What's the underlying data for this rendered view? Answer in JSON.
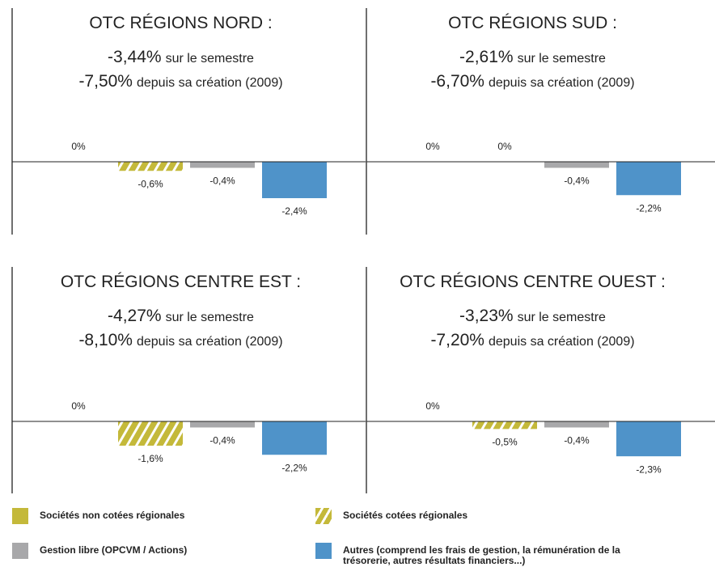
{
  "legend": [
    {
      "name": "Sociétés non cotées régionales",
      "color": "#c4b93a",
      "hatch": false
    },
    {
      "name": "Sociétés cotées régionales",
      "color": "#c4b93a",
      "hatch": true
    },
    {
      "name": "Gestion libre (OPCVM / Actions)",
      "color": "#a8a8aa",
      "hatch": false
    },
    {
      "name": "Autres (comprend les frais de gestion, la rémunération de la trésorerie, autres résultats financiers...)",
      "color": "#4f93c9",
      "hatch": false
    }
  ],
  "chart_data": [
    {
      "type": "bar",
      "title": "OTC RÉGIONS NORD :",
      "stats": [
        {
          "label": "-3,44%",
          "text": "sur le semestre"
        },
        {
          "label": "-7,50%",
          "text": "depuis sa création (2009)"
        }
      ],
      "values": [
        0,
        -0.6,
        -0.4,
        -2.4
      ],
      "value_labels": [
        "0%",
        "-0,6%",
        "-0,4%",
        "-2,4%"
      ],
      "ylim": [
        -3,
        2
      ]
    },
    {
      "type": "bar",
      "title": "OTC RÉGIONS SUD :",
      "stats": [
        {
          "label": "-2,61%",
          "text": "sur le semestre"
        },
        {
          "label": "-6,70%",
          "text": "depuis sa création (2009)"
        }
      ],
      "values": [
        0,
        0,
        -0.4,
        -2.2
      ],
      "value_labels": [
        "0%",
        "0%",
        "-0,4%",
        "-2,2%"
      ],
      "ylim": [
        -3,
        2
      ]
    },
    {
      "type": "bar",
      "title": "OTC RÉGIONS CENTRE EST :",
      "stats": [
        {
          "label": "-4,27%",
          "text": "sur le semestre"
        },
        {
          "label": "-8,10%",
          "text": "depuis sa création (2009)"
        }
      ],
      "values": [
        0,
        -1.6,
        -0.4,
        -2.2
      ],
      "value_labels": [
        "0%",
        "-1,6%",
        "-0,4%",
        "-2,2%"
      ],
      "ylim": [
        -3,
        2
      ]
    },
    {
      "type": "bar",
      "title": "OTC RÉGIONS CENTRE OUEST :",
      "stats": [
        {
          "label": "-3,23%",
          "text": "sur le semestre"
        },
        {
          "label": "-7,20%",
          "text": "depuis sa création (2009)"
        }
      ],
      "values": [
        0,
        -0.5,
        -0.4,
        -2.3
      ],
      "value_labels": [
        "0%",
        "-0,5%",
        "-0,4%",
        "-2,3%"
      ],
      "ylim": [
        -3,
        2
      ]
    }
  ]
}
